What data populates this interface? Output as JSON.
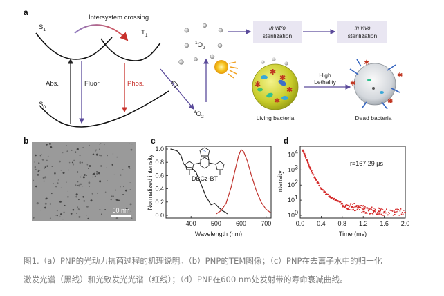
{
  "panel_a": {
    "label": "a",
    "s1": "S",
    "s1_sub": "1",
    "t1": "T",
    "t1_sub": "1",
    "s0": "S",
    "s0_sub": "0",
    "isc": "Intersystem crossing",
    "abs": "Abs.",
    "fluor": "Fluor.",
    "phos": "Phos.",
    "et": "ET",
    "o2_singlet_sup": "1",
    "o2_singlet": "O",
    "o2_singlet_sub": "2",
    "o2_triplet_sup": "3",
    "o2_triplet": "O",
    "o2_triplet_sub": "2",
    "invitro_1": "In vitro",
    "invitro_2": "sterilization",
    "invivo_1": "In vivo",
    "invivo_2": "sterilization",
    "high": "High",
    "lethality": "Lethality",
    "living": "Living bacteria",
    "dead": "Dead bacteria"
  },
  "panel_b": {
    "label": "b",
    "scalebar": "50 nm"
  },
  "panel_c": {
    "label": "c",
    "ylabel": "Normalized intensity",
    "xlabel": "Wavelength (nm)",
    "molecule": "DBCz-BT",
    "xticks": [
      "400",
      "500",
      "600",
      "700"
    ],
    "yticks": [
      "1.0",
      "0.8",
      "0.6",
      "0.4",
      "0.2",
      "0.0"
    ]
  },
  "panel_d": {
    "label": "d",
    "ylabel": "Intensity",
    "xlabel": "Time (ms)",
    "annotation": "r=167.29 μs",
    "xticks": [
      "0.0",
      "0.4",
      "0.8",
      "1.2",
      "1.6",
      "2.0"
    ],
    "ytick_base": "10",
    "ytick_exps": [
      "4",
      "3",
      "2",
      "1",
      "0"
    ]
  },
  "caption": {
    "line1": "图1.（a）PNP的光动力抗菌过程的机理说明。（b）PNP的TEM图像；（c）PNP在去离子水中的归一化",
    "line2": "激发光谱（黑线）和光致发光光谱（红线）；（d）PNP在600 nm处发射带的寿命衰减曲线。"
  },
  "chart_data": [
    {
      "type": "line",
      "panel": "c",
      "xlabel": "Wavelength (nm)",
      "ylabel": "Normalized intensity",
      "xlim": [
        300,
        720
      ],
      "ylim": [
        0,
        1.0
      ],
      "series": [
        {
          "color": "#222222",
          "x": [
            318,
            330,
            345,
            360,
            370,
            385,
            400,
            420,
            440,
            460,
            480,
            495,
            510,
            525,
            540,
            545
          ],
          "y": [
            1.0,
            0.99,
            0.97,
            0.9,
            0.78,
            0.72,
            0.72,
            0.65,
            0.47,
            0.28,
            0.16,
            0.18,
            0.12,
            0.07,
            0.04,
            0.02
          ]
        },
        {
          "color": "#c0322c",
          "x": [
            500,
            520,
            540,
            560,
            575,
            590,
            600,
            610,
            625,
            640,
            660,
            680,
            700,
            718
          ],
          "y": [
            0.02,
            0.07,
            0.18,
            0.42,
            0.66,
            0.9,
            0.99,
            0.96,
            0.82,
            0.62,
            0.38,
            0.2,
            0.09,
            0.04
          ]
        }
      ]
    },
    {
      "type": "scatter",
      "panel": "d",
      "xlabel": "Time (ms)",
      "ylabel": "Intensity",
      "xlim": [
        0.0,
        2.0
      ],
      "ylim": [
        1,
        30000
      ],
      "yscale": "log",
      "annotation": "r=167.29 μs",
      "series": [
        {
          "color": "#d42a2a",
          "x": [
            0.05,
            0.1,
            0.15,
            0.2,
            0.3,
            0.4,
            0.5,
            0.6,
            0.7,
            0.8,
            0.9,
            1.0,
            1.1,
            1.2,
            1.3,
            1.4,
            1.5,
            1.6,
            1.8,
            2.0
          ],
          "y": [
            20000,
            8000,
            3000,
            1100,
            220,
            60,
            25,
            14,
            9,
            6,
            4.5,
            3.6,
            3.0,
            2.5,
            2.2,
            2.0,
            1.8,
            1.7,
            1.6,
            1.5
          ]
        }
      ]
    }
  ]
}
